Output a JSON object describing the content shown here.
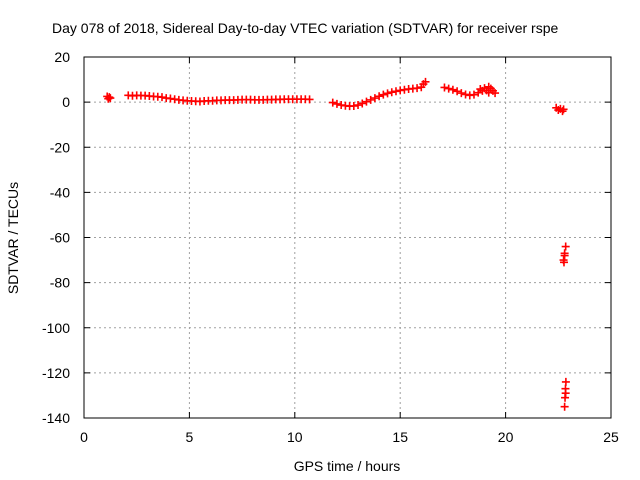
{
  "chart_data": {
    "type": "scatter",
    "title": "Day 078 of 2018, Sidereal Day-to-day VTEC variation (SDTVAR) for receiver rspe",
    "xlabel": "GPS time / hours",
    "ylabel": "SDTVAR / TECUs",
    "xlim": [
      0,
      25
    ],
    "ylim": [
      -140,
      20
    ],
    "xticks": [
      "0",
      "5",
      "10",
      "15",
      "20",
      "25"
    ],
    "yticks": [
      "20",
      "0",
      "-20",
      "-40",
      "-60",
      "-80",
      "-100",
      "-120",
      "-140"
    ],
    "grid": true,
    "marker": "+",
    "color": "#ff0000",
    "series": [
      {
        "name": "SDTVAR",
        "points": [
          [
            1.1,
            2.5
          ],
          [
            1.15,
            1.5
          ],
          [
            1.2,
            2.2
          ],
          [
            1.25,
            1.8
          ],
          [
            2.1,
            3.0
          ],
          [
            2.3,
            2.8
          ],
          [
            2.5,
            3.0
          ],
          [
            2.7,
            2.9
          ],
          [
            2.9,
            2.9
          ],
          [
            3.1,
            2.7
          ],
          [
            3.3,
            2.5
          ],
          [
            3.5,
            2.4
          ],
          [
            3.7,
            2.2
          ],
          [
            3.9,
            1.8
          ],
          [
            4.1,
            1.6
          ],
          [
            4.3,
            1.3
          ],
          [
            4.5,
            1.0
          ],
          [
            4.7,
            0.8
          ],
          [
            4.9,
            0.6
          ],
          [
            5.1,
            0.5
          ],
          [
            5.3,
            0.4
          ],
          [
            5.5,
            0.3
          ],
          [
            5.7,
            0.5
          ],
          [
            5.9,
            0.6
          ],
          [
            6.1,
            0.6
          ],
          [
            6.3,
            0.8
          ],
          [
            6.5,
            0.8
          ],
          [
            6.7,
            0.9
          ],
          [
            6.9,
            0.9
          ],
          [
            7.1,
            0.9
          ],
          [
            7.3,
            1.0
          ],
          [
            7.5,
            1.1
          ],
          [
            7.7,
            1.1
          ],
          [
            7.9,
            1.1
          ],
          [
            8.1,
            1.0
          ],
          [
            8.3,
            1.0
          ],
          [
            8.5,
            1.0
          ],
          [
            8.7,
            1.1
          ],
          [
            8.9,
            1.1
          ],
          [
            9.1,
            1.2
          ],
          [
            9.3,
            1.2
          ],
          [
            9.5,
            1.3
          ],
          [
            9.7,
            1.3
          ],
          [
            9.9,
            1.3
          ],
          [
            10.1,
            1.3
          ],
          [
            10.3,
            1.3
          ],
          [
            10.5,
            1.3
          ],
          [
            10.7,
            1.2
          ],
          [
            11.8,
            -0.2
          ],
          [
            12.0,
            -0.8
          ],
          [
            12.2,
            -1.3
          ],
          [
            12.4,
            -1.6
          ],
          [
            12.6,
            -1.8
          ],
          [
            12.8,
            -1.7
          ],
          [
            13.0,
            -1.3
          ],
          [
            13.2,
            -0.6
          ],
          [
            13.4,
            0.2
          ],
          [
            13.6,
            1.0
          ],
          [
            13.8,
            1.8
          ],
          [
            14.0,
            2.6
          ],
          [
            14.2,
            3.3
          ],
          [
            14.4,
            3.9
          ],
          [
            14.6,
            4.4
          ],
          [
            14.8,
            4.8
          ],
          [
            15.0,
            5.2
          ],
          [
            15.2,
            5.5
          ],
          [
            15.4,
            5.8
          ],
          [
            15.6,
            6.0
          ],
          [
            15.8,
            6.2
          ],
          [
            16.0,
            6.6
          ],
          [
            16.1,
            8.0
          ],
          [
            16.2,
            9.0
          ],
          [
            17.1,
            6.5
          ],
          [
            17.3,
            6.0
          ],
          [
            17.5,
            5.5
          ],
          [
            17.7,
            4.8
          ],
          [
            17.9,
            4.0
          ],
          [
            18.1,
            3.4
          ],
          [
            18.3,
            3.0
          ],
          [
            18.5,
            3.3
          ],
          [
            18.7,
            4.2
          ],
          [
            18.9,
            5.0
          ],
          [
            19.0,
            6.2
          ],
          [
            19.1,
            5.2
          ],
          [
            19.2,
            4.2
          ],
          [
            19.3,
            6.0
          ],
          [
            19.4,
            5.0
          ],
          [
            19.5,
            4.0
          ],
          [
            18.8,
            5.8
          ],
          [
            19.2,
            6.8
          ],
          [
            22.4,
            -2.5
          ],
          [
            22.5,
            -3.5
          ],
          [
            22.6,
            -3.0
          ],
          [
            22.7,
            -4.0
          ],
          [
            22.75,
            -3.2
          ],
          [
            22.75,
            -70
          ],
          [
            22.8,
            -67
          ],
          [
            22.85,
            -64
          ],
          [
            22.8,
            -68
          ],
          [
            22.77,
            -71
          ],
          [
            22.8,
            -135
          ],
          [
            22.82,
            -131
          ],
          [
            22.84,
            -127
          ],
          [
            22.86,
            -124
          ],
          [
            22.85,
            -129
          ]
        ]
      }
    ]
  }
}
